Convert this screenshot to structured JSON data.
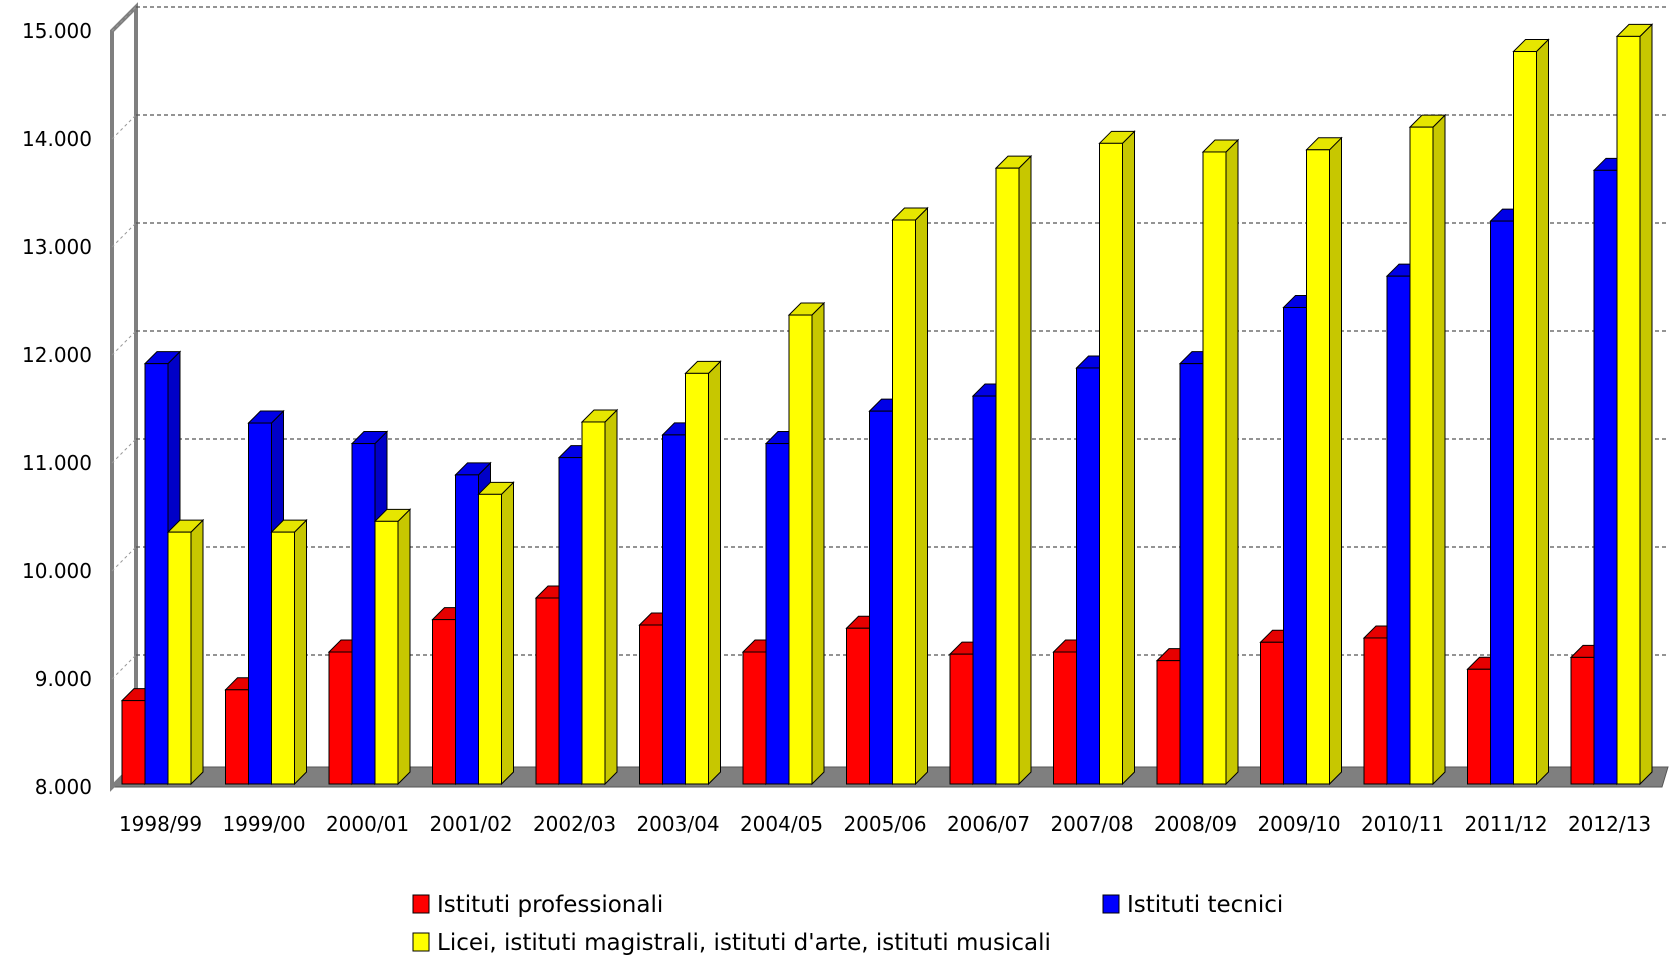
{
  "chart_data": {
    "type": "bar",
    "style": "3d-clustered",
    "title": "",
    "xlabel": "",
    "ylabel": "",
    "ylim": [
      8000,
      15000
    ],
    "y_ticks": [
      "8.000",
      "9.000",
      "10.000",
      "11.000",
      "12.000",
      "13.000",
      "14.000",
      "15.000"
    ],
    "grid": true,
    "legend_position": "bottom",
    "categories": [
      "1998/99",
      "1999/00",
      "2000/01",
      "2001/02",
      "2002/03",
      "2003/04",
      "2004/05",
      "2005/06",
      "2006/07",
      "2007/08",
      "2008/09",
      "2009/10",
      "2010/11",
      "2011/12",
      "2012/13"
    ],
    "series": [
      {
        "name": "Istituti professionali",
        "color": "#ff0000",
        "values": [
          8800,
          8900,
          9250,
          9550,
          9750,
          9500,
          9250,
          9470,
          9230,
          9250,
          9170,
          9340,
          9380,
          9090,
          9200
        ]
      },
      {
        "name": "Istituti tecnici",
        "color": "#0000ff",
        "values": [
          11920,
          11370,
          11180,
          10890,
          11050,
          11260,
          11180,
          11480,
          11620,
          11880,
          11920,
          12440,
          12730,
          13240,
          13710
        ]
      },
      {
        "name": "Licei, istituti magistrali, istituti d'arte, istituti musicali",
        "color": "#ffff00",
        "values": [
          10360,
          10360,
          10460,
          10710,
          11380,
          11830,
          12370,
          13250,
          13730,
          13960,
          13880,
          13900,
          14110,
          14810,
          14950
        ]
      }
    ]
  }
}
